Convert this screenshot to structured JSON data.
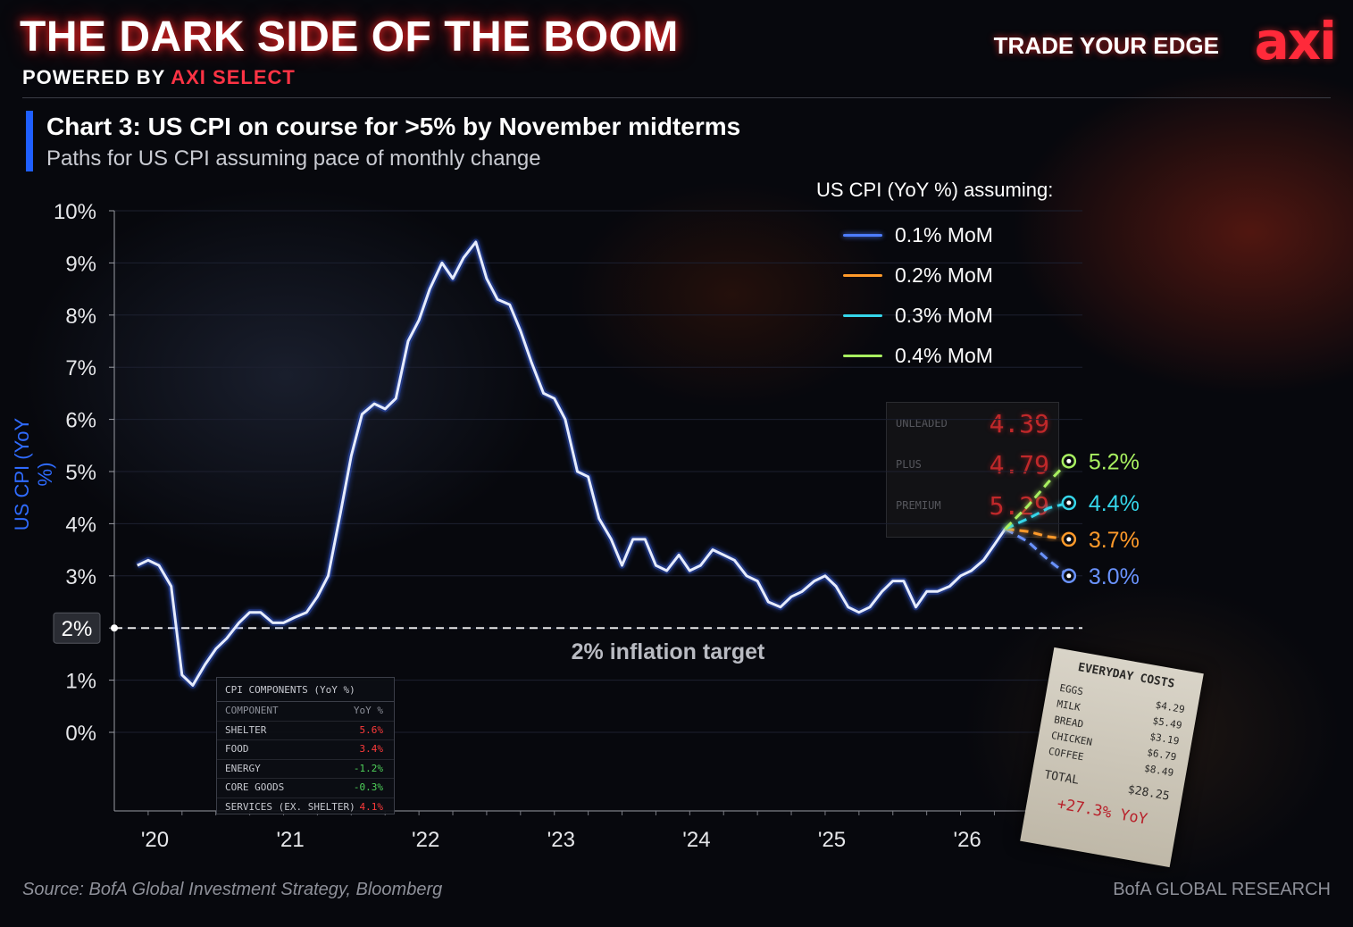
{
  "header": {
    "title": "THE DARK SIDE OF THE BOOM",
    "powered_prefix": "POWERED BY",
    "powered_brand": "AXI SELECT",
    "tagline": "TRADE YOUR EDGE",
    "logo": "axi"
  },
  "colors": {
    "accent_red": "#ff2a3a",
    "accent_blue": "#1f5fff",
    "line_blue": "#4d7dff",
    "path_orange": "#ff9a2a",
    "path_cyan": "#35d6ea",
    "path_green": "#a8f060"
  },
  "chart_data": {
    "type": "line",
    "title": "Chart 3: US CPI on course for >5% by November midterms",
    "subtitle": "Paths for US CPI assuming pace of monthly change",
    "ylabel": "US CPI (YoY %)",
    "ylim": [
      0,
      10
    ],
    "yticks": [
      "0%",
      "1%",
      "2%",
      "3%",
      "4%",
      "5%",
      "6%",
      "7%",
      "8%",
      "9%",
      "10%"
    ],
    "xticks": [
      "'20",
      "'21",
      "'22",
      "'23",
      "'24",
      "'25",
      "'26"
    ],
    "xlim": [
      2019.75,
      2026.9
    ],
    "legend_title": "US CPI (YoY %) assuming:",
    "target": {
      "value": 2,
      "label": "2% inflation target",
      "badge": "2%"
    },
    "history": {
      "x": [
        2019.92,
        2020.0,
        2020.08,
        2020.17,
        2020.25,
        2020.33,
        2020.42,
        2020.5,
        2020.58,
        2020.67,
        2020.75,
        2020.83,
        2020.92,
        2021.0,
        2021.08,
        2021.17,
        2021.25,
        2021.33,
        2021.42,
        2021.5,
        2021.58,
        2021.67,
        2021.75,
        2021.83,
        2021.92,
        2022.0,
        2022.08,
        2022.17,
        2022.25,
        2022.33,
        2022.42,
        2022.5,
        2022.58,
        2022.67,
        2022.75,
        2022.83,
        2022.92,
        2023.0,
        2023.08,
        2023.17,
        2023.25,
        2023.33,
        2023.42,
        2023.5,
        2023.58,
        2023.67,
        2023.75,
        2023.83,
        2023.92,
        2024.0,
        2024.08,
        2024.17,
        2024.25,
        2024.33,
        2024.42,
        2024.5,
        2024.58,
        2024.67,
        2024.75,
        2024.83,
        2024.92,
        2025.0,
        2025.08,
        2025.17,
        2025.25,
        2025.33,
        2025.42,
        2025.5,
        2025.58,
        2025.67,
        2025.75,
        2025.83,
        2025.92,
        2026.0,
        2026.08,
        2026.17,
        2026.25,
        2026.33
      ],
      "y": [
        3.2,
        3.3,
        3.2,
        2.8,
        1.1,
        0.9,
        1.3,
        1.6,
        1.8,
        2.1,
        2.3,
        2.3,
        2.1,
        2.1,
        2.2,
        2.3,
        2.6,
        3.0,
        4.2,
        5.3,
        6.1,
        6.3,
        6.2,
        6.4,
        7.5,
        7.9,
        8.5,
        9.0,
        8.7,
        9.1,
        9.4,
        8.7,
        8.3,
        8.2,
        7.7,
        7.1,
        6.5,
        6.4,
        6.0,
        5.0,
        4.9,
        4.1,
        3.7,
        3.2,
        3.7,
        3.7,
        3.2,
        3.1,
        3.4,
        3.1,
        3.2,
        3.5,
        3.4,
        3.3,
        3.0,
        2.9,
        2.5,
        2.4,
        2.6,
        2.7,
        2.9,
        3.0,
        2.8,
        2.4,
        2.3,
        2.4,
        2.7,
        2.9,
        2.9,
        2.4,
        2.7,
        2.7,
        2.8,
        3.0,
        3.1,
        3.3,
        3.6,
        3.9
      ]
    },
    "series": [
      {
        "name": "0.1% MoM",
        "end_label": "3.0%",
        "x": [
          2026.33,
          2026.5,
          2026.65,
          2026.8
        ],
        "y": [
          3.9,
          3.65,
          3.3,
          3.0
        ]
      },
      {
        "name": "0.2% MoM",
        "end_label": "3.7%",
        "x": [
          2026.33,
          2026.5,
          2026.65,
          2026.8
        ],
        "y": [
          3.9,
          3.85,
          3.75,
          3.7
        ]
      },
      {
        "name": "0.3% MoM",
        "end_label": "4.4%",
        "x": [
          2026.33,
          2026.5,
          2026.65,
          2026.8
        ],
        "y": [
          3.9,
          4.1,
          4.3,
          4.4
        ]
      },
      {
        "name": "0.4% MoM",
        "end_label": "5.2%",
        "x": [
          2026.33,
          2026.5,
          2026.65,
          2026.8
        ],
        "y": [
          3.9,
          4.35,
          4.8,
          5.2
        ]
      }
    ]
  },
  "cpi_table": {
    "title": "CPI COMPONENTS (YoY %)",
    "col_component": "COMPONENT",
    "col_value": "YoY %",
    "rows": [
      {
        "name": "SHELTER",
        "value": "5.6%",
        "color": "#ff3b3b"
      },
      {
        "name": "FOOD",
        "value": "3.4%",
        "color": "#ff3b3b"
      },
      {
        "name": "ENERGY",
        "value": "-1.2%",
        "color": "#4fd25a"
      },
      {
        "name": "CORE GOODS",
        "value": "-0.3%",
        "color": "#4fd25a"
      },
      {
        "name": "SERVICES (EX. SHELTER)",
        "value": "4.1%",
        "color": "#ff3b3b"
      }
    ]
  },
  "gas_pump": {
    "rows": [
      {
        "label": "UNLEADED",
        "price": "4.39"
      },
      {
        "label": "PLUS",
        "price": "4.79"
      },
      {
        "label": "PREMIUM",
        "price": "5.29"
      }
    ]
  },
  "receipt": {
    "title": "EVERYDAY COSTS",
    "items": [
      {
        "name": "EGGS",
        "price": "$4.29"
      },
      {
        "name": "MILK",
        "price": "$5.49"
      },
      {
        "name": "BREAD",
        "price": "$3.19"
      },
      {
        "name": "CHICKEN",
        "price": "$6.79"
      },
      {
        "name": "COFFEE",
        "price": "$8.49"
      }
    ],
    "total_label": "TOTAL",
    "total": "$28.25",
    "yoy": "+27.3% YoY"
  },
  "footer": {
    "source": "Source: BofA Global Investment Strategy, Bloomberg",
    "credit": "BofA GLOBAL RESEARCH"
  }
}
